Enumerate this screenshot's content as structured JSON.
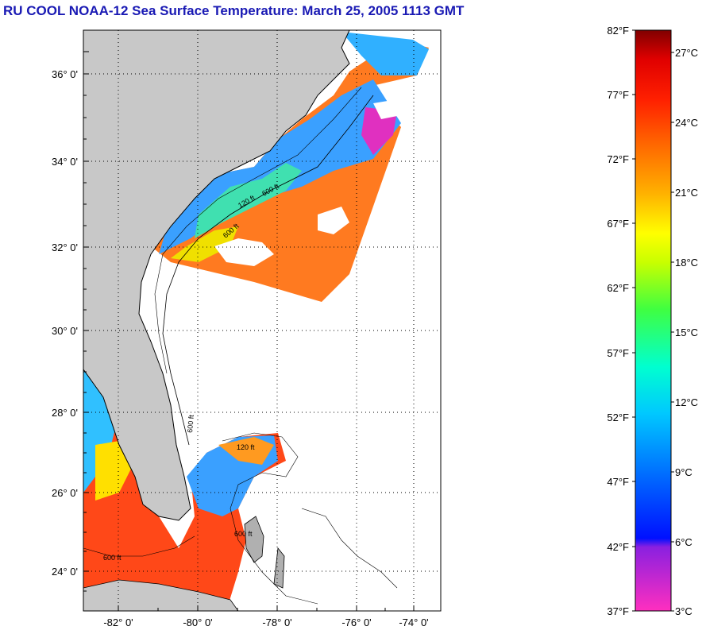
{
  "title": "RU COOL  NOAA-12  Sea Surface Temperature:  March 25, 2005 1113 GMT",
  "map": {
    "lat_ticks": [
      "36° 0'",
      "34° 0'",
      "32° 0'",
      "30° 0'",
      "28° 0'",
      "26° 0'",
      "24° 0'"
    ],
    "lon_ticks": [
      "-82° 0'",
      "-80° 0'",
      "-78° 0'",
      "-76° 0'",
      "-74° 0'"
    ],
    "contour_labels": [
      "600 ft",
      "120 ft",
      "600 ft",
      "600 ft",
      "120 ft",
      "600 ft",
      "600 ft"
    ],
    "colors": {
      "land": "#c8c8c8",
      "cloud": "#ffffff",
      "border": "#000000",
      "grid": "#000000"
    }
  },
  "colorbar": {
    "fahrenheit_labels": [
      "82°F",
      "77°F",
      "72°F",
      "67°F",
      "62°F",
      "57°F",
      "52°F",
      "47°F",
      "42°F",
      "37°F"
    ],
    "celsius_labels": [
      "27°C",
      "24°C",
      "21°C",
      "18°C",
      "15°C",
      "12°C",
      "9°C",
      "6°C",
      "3°C"
    ],
    "gradient": [
      "#ff2fbf",
      "#8a20e0",
      "#0010ff",
      "#0060ff",
      "#00c8ff",
      "#00ffd0",
      "#40ff40",
      "#c8ff00",
      "#ffff00",
      "#ffb000",
      "#ff6a00",
      "#ff2000",
      "#e00000",
      "#800000"
    ]
  }
}
